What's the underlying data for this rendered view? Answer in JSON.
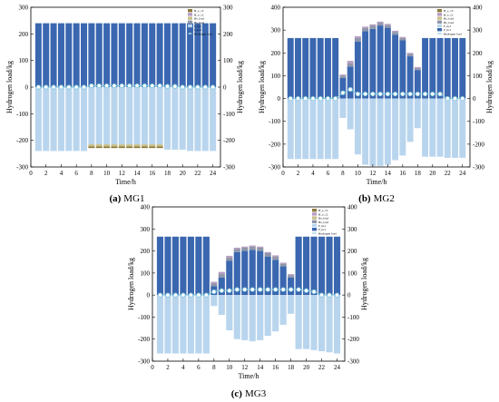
{
  "chart_data": [
    {
      "type": "bar",
      "caption_letter": "(a)",
      "caption_name": "MG1",
      "xlabel": "Time/h",
      "ylabel": "Hydrogen load/kg",
      "ylim": [
        -300,
        300
      ],
      "yticks": [
        -300,
        -200,
        -100,
        0,
        100,
        200,
        300
      ],
      "xlim": [
        0,
        25
      ],
      "xticks": [
        0,
        2,
        4,
        6,
        8,
        10,
        12,
        14,
        16,
        18,
        20,
        22,
        24
      ],
      "hours": [
        1,
        2,
        3,
        4,
        5,
        6,
        7,
        8,
        9,
        10,
        11,
        12,
        13,
        14,
        15,
        16,
        17,
        18,
        19,
        20,
        21,
        22,
        23,
        24
      ],
      "stack_positive": [
        {
          "name": "P_hc1",
          "color": "#3a67b0",
          "values": [
            240,
            240,
            240,
            240,
            240,
            240,
            240,
            240,
            240,
            240,
            240,
            240,
            240,
            240,
            240,
            240,
            240,
            240,
            240,
            240,
            240,
            240,
            240,
            240
          ]
        }
      ],
      "stack_negative": [
        {
          "name": "P_hs1",
          "color": "#b9d5ee",
          "values": [
            -240,
            -240,
            -240,
            -240,
            -240,
            -240,
            -240,
            -215,
            -215,
            -215,
            -215,
            -215,
            -215,
            -215,
            -215,
            -215,
            -215,
            -235,
            -235,
            -235,
            -240,
            -240,
            -240,
            -240
          ]
        },
        {
          "name": "Hs_load",
          "color": "#c8c08a",
          "values": [
            0,
            0,
            0,
            0,
            0,
            0,
            0,
            -8,
            -8,
            -8,
            -8,
            -8,
            -8,
            -8,
            -8,
            -8,
            -8,
            0,
            0,
            0,
            0,
            0,
            0,
            0
          ]
        },
        {
          "name": "H_e_13",
          "color": "#8e7a3c",
          "values": [
            0,
            0,
            0,
            0,
            0,
            0,
            0,
            -6,
            -6,
            -6,
            -6,
            -6,
            -6,
            -6,
            -6,
            -6,
            -6,
            0,
            0,
            0,
            0,
            0,
            0,
            0
          ]
        }
      ],
      "line": {
        "name": "Hydrogen load",
        "values": [
          0,
          0,
          0,
          0,
          0,
          0,
          0,
          5,
          5,
          5,
          5,
          5,
          5,
          5,
          5,
          5,
          5,
          3,
          3,
          0,
          0,
          0,
          0,
          0
        ]
      },
      "legend": [
        {
          "label": "H_e_13",
          "color": "#8e7a3c"
        },
        {
          "label": "H_e_12",
          "color": "#b79cc4"
        },
        {
          "label": "Hs_load",
          "color": "#c8c08a"
        },
        {
          "label": "Hs_load",
          "color": "#8f96a8"
        },
        {
          "label": "P_hs1",
          "color": "#b9d5ee"
        },
        {
          "label": "P_hc1",
          "color": "#3a67b0"
        },
        {
          "label": "Hydrogen load",
          "color": "#7fc7d9"
        }
      ],
      "legend_position": "top-right"
    },
    {
      "type": "bar",
      "caption_letter": "(b)",
      "caption_name": "MG2",
      "xlabel": "Time/h",
      "ylabel": "Hydrogen load/kg",
      "ylim": [
        -300,
        400
      ],
      "yticks": [
        -300,
        -200,
        -100,
        0,
        100,
        200,
        300,
        400
      ],
      "xlim": [
        0,
        25
      ],
      "xticks": [
        0,
        2,
        4,
        6,
        8,
        10,
        12,
        14,
        16,
        18,
        20,
        22,
        24
      ],
      "hours": [
        1,
        2,
        3,
        4,
        5,
        6,
        7,
        8,
        9,
        10,
        11,
        12,
        13,
        14,
        15,
        16,
        17,
        18,
        19,
        20,
        21,
        22,
        23,
        24
      ],
      "stack_positive": [
        {
          "name": "P_hc1",
          "color": "#3a67b0",
          "values": [
            265,
            265,
            265,
            265,
            265,
            265,
            265,
            90,
            140,
            250,
            295,
            305,
            320,
            310,
            280,
            255,
            185,
            125,
            265,
            265,
            265,
            265,
            265,
            265
          ]
        },
        {
          "name": "Hs_load",
          "color": "#8f96a8",
          "values": [
            0,
            0,
            0,
            0,
            0,
            0,
            0,
            10,
            15,
            15,
            15,
            15,
            12,
            12,
            12,
            10,
            10,
            8,
            0,
            0,
            0,
            0,
            0,
            0
          ]
        },
        {
          "name": "H_e_12",
          "color": "#b79cc4",
          "values": [
            0,
            0,
            0,
            0,
            0,
            0,
            0,
            5,
            10,
            8,
            5,
            5,
            5,
            5,
            5,
            5,
            5,
            5,
            0,
            0,
            0,
            0,
            0,
            0
          ]
        }
      ],
      "stack_negative": [
        {
          "name": "P_hs1",
          "color": "#b9d5ee",
          "values": [
            -265,
            -265,
            -265,
            -265,
            -265,
            -265,
            -265,
            -85,
            -135,
            -245,
            -290,
            -295,
            -295,
            -290,
            -270,
            -250,
            -190,
            -130,
            -255,
            -255,
            -255,
            -260,
            -260,
            -260
          ]
        }
      ],
      "line": {
        "name": "Hydrogen load",
        "values": [
          0,
          0,
          0,
          0,
          0,
          0,
          0,
          25,
          40,
          20,
          20,
          20,
          20,
          20,
          20,
          20,
          20,
          20,
          20,
          20,
          20,
          0,
          0,
          0
        ]
      },
      "legend": [
        {
          "label": "H_e_13",
          "color": "#8e7a3c"
        },
        {
          "label": "H_e_12",
          "color": "#b79cc4"
        },
        {
          "label": "Hs_load",
          "color": "#c8c08a"
        },
        {
          "label": "Hs_load",
          "color": "#8f96a8"
        },
        {
          "label": "P_hs1",
          "color": "#b9d5ee"
        },
        {
          "label": "P_hc1",
          "color": "#3a67b0"
        },
        {
          "label": "Hydrogen load",
          "color": "#7fc7d9"
        }
      ],
      "legend_position": "top-right"
    },
    {
      "type": "bar",
      "caption_letter": "(c)",
      "caption_name": "MG3",
      "xlabel": "Time/h",
      "ylabel": "Hydrogen load/kg",
      "ylim": [
        -300,
        400
      ],
      "yticks": [
        -300,
        -200,
        -100,
        0,
        100,
        200,
        300,
        400
      ],
      "xlim": [
        0,
        25
      ],
      "xticks": [
        0,
        2,
        4,
        6,
        8,
        10,
        12,
        14,
        16,
        18,
        20,
        22,
        24
      ],
      "hours": [
        1,
        2,
        3,
        4,
        5,
        6,
        7,
        8,
        9,
        10,
        11,
        12,
        13,
        14,
        15,
        16,
        17,
        18,
        19,
        20,
        21,
        22,
        23,
        24
      ],
      "stack_positive": [
        {
          "name": "P_hc1",
          "color": "#3a67b0",
          "values": [
            265,
            265,
            265,
            265,
            265,
            265,
            265,
            40,
            80,
            155,
            195,
            200,
            205,
            200,
            175,
            160,
            130,
            80,
            265,
            265,
            265,
            265,
            265,
            265
          ]
        },
        {
          "name": "Hs_load",
          "color": "#8f96a8",
          "values": [
            0,
            0,
            0,
            0,
            0,
            0,
            0,
            12,
            15,
            15,
            15,
            15,
            15,
            15,
            15,
            15,
            12,
            10,
            0,
            0,
            0,
            0,
            0,
            0
          ]
        },
        {
          "name": "H_e_12",
          "color": "#b79cc4",
          "values": [
            0,
            0,
            0,
            0,
            0,
            0,
            0,
            8,
            10,
            8,
            5,
            5,
            5,
            5,
            5,
            5,
            5,
            5,
            0,
            0,
            0,
            0,
            0,
            0
          ]
        }
      ],
      "stack_negative": [
        {
          "name": "P_hs1",
          "color": "#b9d5ee",
          "values": [
            -265,
            -265,
            -265,
            -265,
            -265,
            -265,
            -265,
            -50,
            -90,
            -160,
            -200,
            -205,
            -210,
            -205,
            -185,
            -165,
            -135,
            -85,
            -245,
            -245,
            -250,
            -255,
            -260,
            -265
          ]
        }
      ],
      "line": {
        "name": "Hydrogen load",
        "values": [
          0,
          0,
          0,
          0,
          0,
          0,
          0,
          15,
          20,
          20,
          25,
          25,
          25,
          25,
          25,
          25,
          25,
          25,
          25,
          20,
          15,
          0,
          0,
          0
        ]
      },
      "legend": [
        {
          "label": "H_e_13",
          "color": "#8e7a3c"
        },
        {
          "label": "H_e_12",
          "color": "#b79cc4"
        },
        {
          "label": "Hs_load",
          "color": "#c8c08a"
        },
        {
          "label": "Hs_load",
          "color": "#8f96a8"
        },
        {
          "label": "P_hs1",
          "color": "#b9d5ee"
        },
        {
          "label": "P_hc1",
          "color": "#3a67b0"
        },
        {
          "label": "Hydrogen load",
          "color": "#7fc7d9"
        }
      ],
      "legend_position": "top-right"
    }
  ]
}
